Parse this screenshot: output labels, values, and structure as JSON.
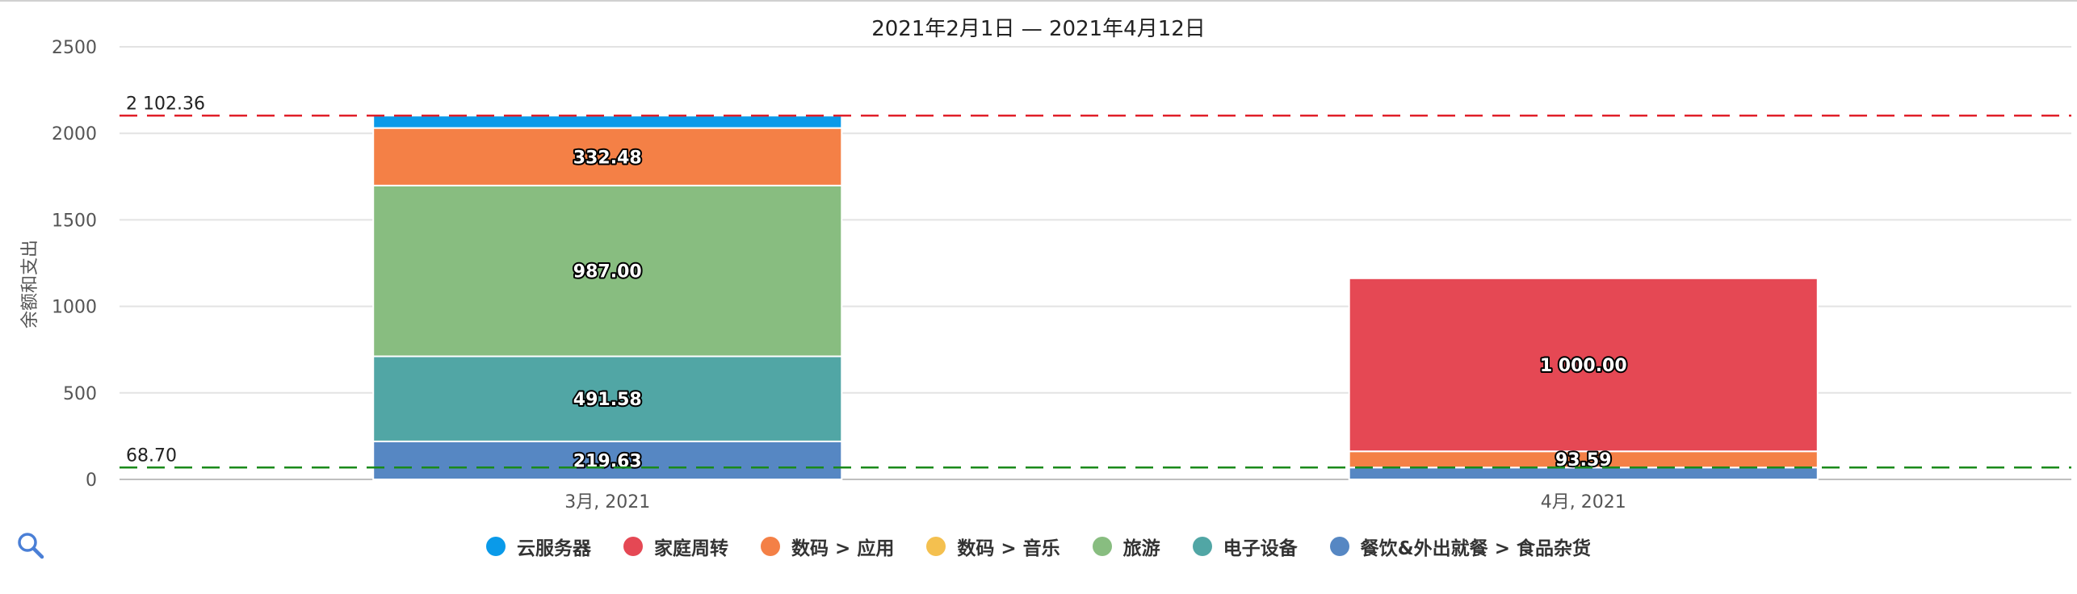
{
  "chart_data": {
    "type": "bar",
    "stacked": true,
    "title": "2021年2月1日 — 2021年4月12日",
    "ylabel": "余额和支出",
    "ylim": [
      0,
      2500
    ],
    "yticks": [
      0,
      500,
      1000,
      1500,
      2000,
      2500
    ],
    "grid": true,
    "legend_position": "bottom-center",
    "categories": [
      "3月, 2021",
      "4月, 2021"
    ],
    "series": [
      {
        "name": "餐饮&外出就餐 > 食品杂货",
        "color": "#5687c3",
        "values": [
          219.63,
          68.7
        ]
      },
      {
        "name": "电子设备",
        "color": "#51a6a5",
        "values": [
          491.58,
          0
        ]
      },
      {
        "name": "旅游",
        "color": "#88bd80",
        "values": [
          987.0,
          0
        ]
      },
      {
        "name": "数码 > 音乐",
        "color": "#f4c04f",
        "values": [
          0,
          0
        ]
      },
      {
        "name": "数码 > 应用",
        "color": "#f48046",
        "values": [
          332.48,
          93.59
        ]
      },
      {
        "name": "家庭周转",
        "color": "#e54854",
        "values": [
          0,
          1000.0
        ]
      },
      {
        "name": "云服务器",
        "color": "#0a9ae9",
        "values": [
          71.67,
          0
        ]
      }
    ],
    "data_labels": [
      {
        "category": 0,
        "series": 0,
        "text": "219.63"
      },
      {
        "category": 0,
        "series": 1,
        "text": "491.58"
      },
      {
        "category": 0,
        "series": 2,
        "text": "987.00"
      },
      {
        "category": 0,
        "series": 4,
        "text": "332.48"
      },
      {
        "category": 1,
        "series": 4,
        "text": "93.59"
      },
      {
        "category": 1,
        "series": 5,
        "text": "1 000.00"
      }
    ],
    "reference_lines": [
      {
        "value": 2102.36,
        "label": "2 102.36",
        "color": "#e0202a"
      },
      {
        "value": 68.7,
        "label": "68.70",
        "color": "#1a8a1a"
      }
    ],
    "legend_order": [
      "云服务器",
      "家庭周转",
      "数码 > 应用",
      "数码 > 音乐",
      "旅游",
      "电子设备",
      "餐饮&外出就餐 > 食品杂货"
    ]
  },
  "icons": {
    "zoom": "magnifier-icon"
  }
}
